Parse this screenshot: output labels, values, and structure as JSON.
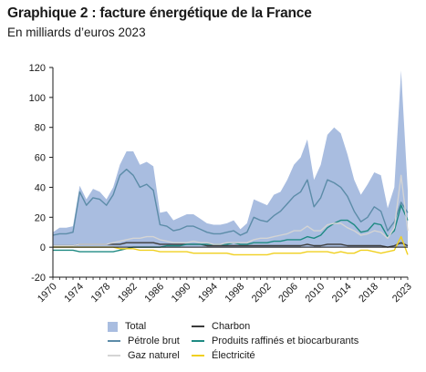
{
  "title": "Graphique 2 : facture énergétique de la France",
  "subtitle": "En milliards d’euros 2023",
  "chart_data": {
    "type": "area",
    "x": [
      1970,
      1971,
      1972,
      1973,
      1974,
      1975,
      1976,
      1977,
      1978,
      1979,
      1980,
      1981,
      1982,
      1983,
      1984,
      1985,
      1986,
      1987,
      1988,
      1989,
      1990,
      1991,
      1992,
      1993,
      1994,
      1995,
      1996,
      1997,
      1998,
      1999,
      2000,
      2001,
      2002,
      2003,
      2004,
      2005,
      2006,
      2007,
      2008,
      2009,
      2010,
      2011,
      2012,
      2013,
      2014,
      2015,
      2016,
      2017,
      2018,
      2019,
      2020,
      2021,
      2022,
      2023
    ],
    "x_tick_labels": [
      "1970",
      "1974",
      "1978",
      "1982",
      "1986",
      "1990",
      "1994",
      "1998",
      "2002",
      "2006",
      "2010",
      "2014",
      "2018",
      "2023"
    ],
    "x_tick_values": [
      1970,
      1974,
      1978,
      1982,
      1986,
      1990,
      1994,
      1998,
      2002,
      2006,
      2010,
      2014,
      2018,
      2023
    ],
    "ylim": [
      -20,
      120
    ],
    "y_ticks": [
      -20,
      0,
      20,
      40,
      60,
      80,
      100,
      120
    ],
    "grid": false,
    "legend_position": "bottom",
    "series": [
      {
        "name": "Total",
        "kind": "area",
        "color": "#a9bde0",
        "values": [
          10,
          13,
          13,
          14,
          41,
          32,
          39,
          37,
          32,
          40,
          55,
          64,
          64,
          55,
          57,
          54,
          23,
          24,
          18,
          20,
          22,
          22,
          19,
          16,
          15,
          15,
          16,
          18,
          12,
          16,
          32,
          30,
          28,
          35,
          37,
          45,
          55,
          60,
          72,
          45,
          55,
          75,
          80,
          76,
          62,
          45,
          35,
          42,
          50,
          48,
          26,
          40,
          118,
          38
        ]
      },
      {
        "name": "Charbon",
        "kind": "line",
        "color": "#3b3b3b",
        "values": [
          1,
          1,
          1,
          1,
          2,
          2,
          2,
          2,
          2,
          2,
          2,
          3,
          3,
          3,
          3,
          3,
          2,
          2,
          2,
          2,
          2,
          2,
          2,
          1,
          1,
          1,
          1,
          1,
          1,
          1,
          1,
          1,
          1,
          1,
          1,
          1,
          1,
          1,
          2,
          1,
          1,
          2,
          2,
          2,
          1,
          1,
          1,
          1,
          1,
          1,
          0,
          1,
          3,
          1
        ]
      },
      {
        "name": "Pétrole brut",
        "kind": "line",
        "color": "#5c8ca8",
        "values": [
          8,
          9,
          9,
          10,
          37,
          28,
          33,
          32,
          28,
          35,
          48,
          52,
          48,
          40,
          42,
          38,
          15,
          14,
          11,
          12,
          14,
          14,
          12,
          10,
          9,
          9,
          10,
          11,
          8,
          10,
          20,
          18,
          17,
          21,
          24,
          29,
          34,
          37,
          45,
          27,
          33,
          45,
          43,
          40,
          34,
          24,
          17,
          20,
          27,
          24,
          11,
          17,
          30,
          23
        ]
      },
      {
        "name": "Produits raffinés et biocarburants",
        "kind": "line",
        "color": "#1f8a83",
        "values": [
          -2,
          -2,
          -2,
          -2,
          -3,
          -3,
          -3,
          -3,
          -3,
          -3,
          -2,
          -1,
          0,
          0,
          0,
          0,
          0,
          1,
          1,
          1,
          2,
          2,
          2,
          2,
          2,
          2,
          2,
          3,
          2,
          2,
          3,
          3,
          3,
          4,
          4,
          5,
          5,
          5,
          7,
          6,
          8,
          13,
          16,
          18,
          18,
          15,
          10,
          11,
          16,
          15,
          7,
          11,
          28,
          18
        ]
      },
      {
        "name": "Gaz naturel",
        "kind": "line",
        "color": "#d4d4d4",
        "values": [
          1,
          1,
          1,
          1,
          2,
          2,
          2,
          2,
          2,
          3,
          4,
          5,
          6,
          6,
          7,
          7,
          5,
          4,
          3,
          3,
          3,
          4,
          3,
          3,
          2,
          2,
          3,
          3,
          3,
          3,
          5,
          6,
          6,
          7,
          8,
          9,
          11,
          11,
          14,
          11,
          11,
          15,
          16,
          16,
          13,
          11,
          8,
          9,
          11,
          10,
          6,
          13,
          48,
          11
        ]
      },
      {
        "name": "Électricité",
        "kind": "line",
        "color": "#f0d020",
        "values": [
          0,
          0,
          0,
          0,
          0,
          0,
          0,
          0,
          0,
          0,
          -1,
          -1,
          -1,
          -2,
          -2,
          -2,
          -3,
          -3,
          -3,
          -3,
          -3,
          -4,
          -4,
          -4,
          -4,
          -4,
          -4,
          -5,
          -5,
          -5,
          -5,
          -5,
          -5,
          -4,
          -4,
          -4,
          -4,
          -4,
          -3,
          -3,
          -3,
          -3,
          -4,
          -3,
          -4,
          -4,
          -2,
          -2,
          -3,
          -4,
          -3,
          -2,
          7,
          -5
        ]
      }
    ]
  },
  "legend": {
    "total": "Total",
    "charbon": "Charbon",
    "petrole": "Pétrole brut",
    "produits": "Produits raffinés et biocarburants",
    "gaz": "Gaz naturel",
    "electricite": "Électricité"
  },
  "colors": {
    "total": "#a9bde0",
    "charbon": "#3b3b3b",
    "petrole": "#5c8ca8",
    "produits": "#1f8a83",
    "gaz": "#d4d4d4",
    "electricite": "#f0d020"
  }
}
